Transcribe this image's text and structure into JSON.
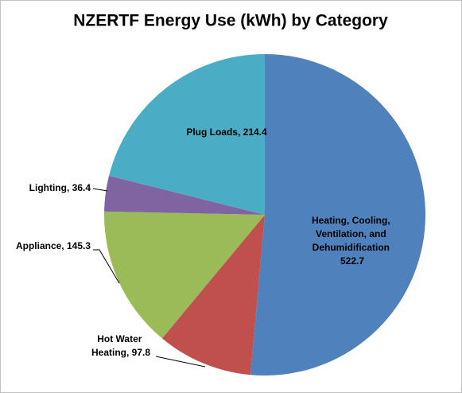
{
  "chart_data": {
    "type": "pie",
    "title": "NZERTF Energy Use (kWh) by Category",
    "values": [
      522.7,
      97.8,
      145.3,
      36.4,
      214.4
    ],
    "value_labels": [
      "Heating, Cooling, Ventilation, and Dehumidification 522.7",
      "Hot Water Heating, 97.8",
      "Appliance, 145.3",
      "Lighting, 36.4",
      "Plug Loads, 214.4"
    ],
    "colors": [
      "#4f81bd",
      "#c0504d",
      "#9bbb59",
      "#8064a2",
      "#4bacc6"
    ]
  }
}
